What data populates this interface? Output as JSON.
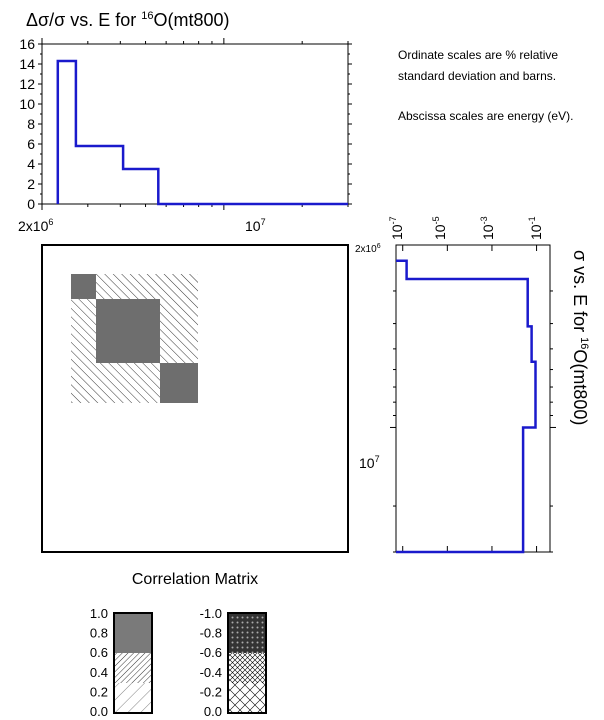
{
  "chart_data": [
    {
      "type": "line",
      "title": "Δσ/σ vs. E for ¹⁶O(mt800)",
      "xscale": "log",
      "xlim": [
        2000000,
        30000000
      ],
      "ylim": [
        0,
        16
      ],
      "xticks": [
        {
          "value": 2000000,
          "label": "2x10⁶"
        },
        {
          "value": 10000000,
          "label": "10⁷"
        }
      ],
      "yticks": [
        0,
        2,
        4,
        6,
        8,
        10,
        12,
        14,
        16
      ],
      "color": "#1a1acc",
      "steps": [
        {
          "x0": 2300000,
          "x1": 2700000,
          "y": 14.3
        },
        {
          "x0": 2700000,
          "x1": 4100000,
          "y": 5.8
        },
        {
          "x0": 4100000,
          "x1": 5600000,
          "y": 3.5
        },
        {
          "x0": 5600000,
          "x1": 30000000,
          "y": 0
        }
      ]
    },
    {
      "type": "line",
      "title": "σ vs. E for ¹⁶O(mt800)",
      "orientation": "rotated",
      "xscale": "log",
      "xlim": [
        5e-08,
        0.4
      ],
      "xticks": [
        {
          "value": 1e-07,
          "label": "10⁻⁷"
        },
        {
          "value": 1e-05,
          "label": "10⁻⁵"
        },
        {
          "value": 0.001,
          "label": "10⁻³"
        },
        {
          "value": 0.1,
          "label": "10⁻¹"
        }
      ],
      "yscale": "log",
      "ylim": [
        2000000,
        30000000
      ],
      "yticks": [
        {
          "value": 2000000,
          "label": "2x10⁶"
        },
        {
          "value": 10000000,
          "label": "10⁷"
        }
      ],
      "color": "#1a1acc",
      "steps": [
        {
          "e0": 2300000,
          "e1": 2700000,
          "sigma": 1.5e-07
        },
        {
          "e0": 2700000,
          "e1": 4100000,
          "sigma": 0.04
        },
        {
          "e0": 4100000,
          "e1": 5600000,
          "sigma": 0.06
        },
        {
          "e0": 5600000,
          "e1": 10000000,
          "sigma": 0.09
        },
        {
          "e0": 10000000,
          "e1": 30000000,
          "sigma": 0.025
        }
      ]
    },
    {
      "type": "heatmap",
      "title": "Correlation Matrix",
      "bins": [
        "2.3e6-2.7e6",
        "2.7e6-5.6e6",
        "5.6e6-7e6"
      ],
      "values": [
        [
          1.0,
          0.3,
          0.3
        ],
        [
          0.3,
          1.0,
          0.3
        ],
        [
          0.3,
          0.3,
          1.0
        ]
      ]
    }
  ],
  "notes": {
    "line1": "Ordinate scales are % relative",
    "line2": "standard deviation and barns.",
    "line3": "Abscissa scales are energy (eV)."
  },
  "legend": {
    "positive_labels": [
      "1.0",
      "0.8",
      "0.6",
      "0.4",
      "0.2",
      "0.0"
    ],
    "negative_labels": [
      "-1.0",
      "-0.8",
      "-0.6",
      "-0.4",
      "-0.2",
      "0.0"
    ]
  }
}
